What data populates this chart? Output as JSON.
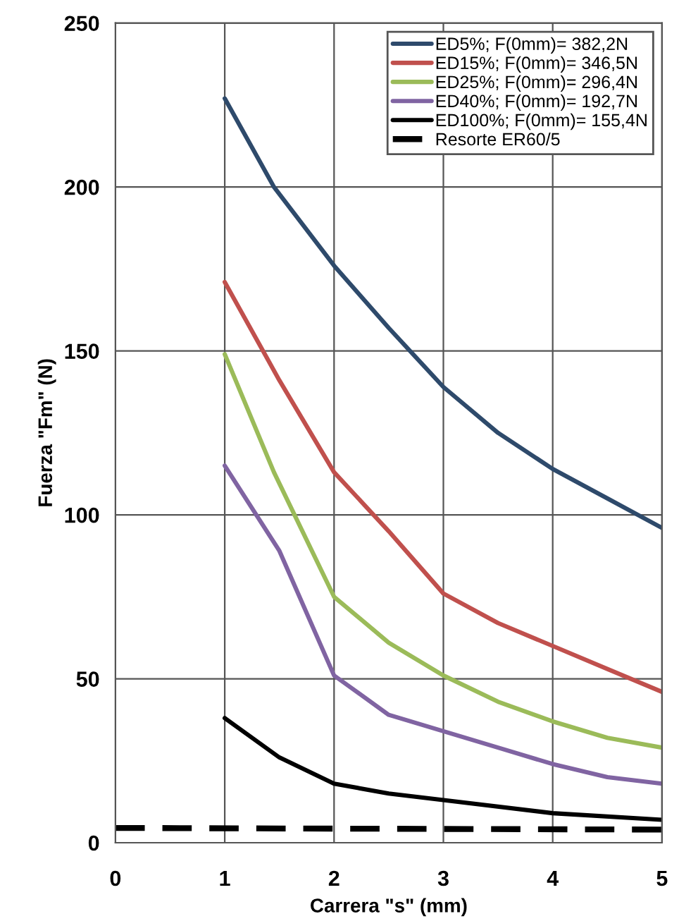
{
  "chart_data": {
    "type": "line",
    "xlabel": "Carrera \"s\" (mm)",
    "ylabel": "Fuerza \"Fm\" (N)",
    "xlim": [
      0,
      5
    ],
    "xticks": [
      0,
      1,
      2,
      3,
      4,
      5
    ],
    "ylim": [
      0,
      250
    ],
    "yticks": [
      0,
      50,
      100,
      150,
      200,
      250
    ],
    "grid": true,
    "legend": "top right",
    "line_style": "solid",
    "series": [
      {
        "name": "ED5%; F(0mm)= 382,2N",
        "color": "#2e4a6b",
        "x": [
          1,
          1.45,
          2,
          2.5,
          3,
          3.5,
          4,
          4.5,
          5
        ],
        "values": [
          227,
          200,
          176,
          157,
          139,
          125,
          114,
          105,
          96
        ]
      },
      {
        "name": "ED15%; F(0mm)= 346,5N",
        "color": "#c0504d",
        "x": [
          1,
          1.5,
          2,
          2.5,
          3,
          3.5,
          4,
          4.5,
          5
        ],
        "values": [
          171,
          141,
          113,
          95,
          76,
          67,
          60,
          53,
          46
        ]
      },
      {
        "name": "ED25%; F(0mm)= 296,4N",
        "color": "#9bbb59",
        "x": [
          1,
          1.45,
          2,
          2.5,
          3,
          3.5,
          4,
          4.5,
          5
        ],
        "values": [
          149,
          113,
          75,
          61,
          51,
          43,
          37,
          32,
          29
        ]
      },
      {
        "name": "ED40%; F(0mm)= 192,7N",
        "color": "#8064a2",
        "x": [
          1,
          1.5,
          2,
          2.5,
          3,
          3.5,
          4,
          4.5,
          5
        ],
        "values": [
          115,
          89,
          51,
          39,
          34,
          29,
          24,
          20,
          18
        ]
      },
      {
        "name": "ED100%; F(0mm)= 155,4N",
        "color": "#000000",
        "x": [
          1,
          1.5,
          2,
          2.5,
          3,
          4,
          5
        ],
        "values": [
          38,
          26,
          18,
          15,
          13,
          9,
          7
        ]
      },
      {
        "name": "Resorte ER60/5",
        "color": "#000000",
        "line_style": "dashed",
        "x": [
          0,
          5
        ],
        "values": [
          4.5,
          4
        ]
      }
    ]
  }
}
